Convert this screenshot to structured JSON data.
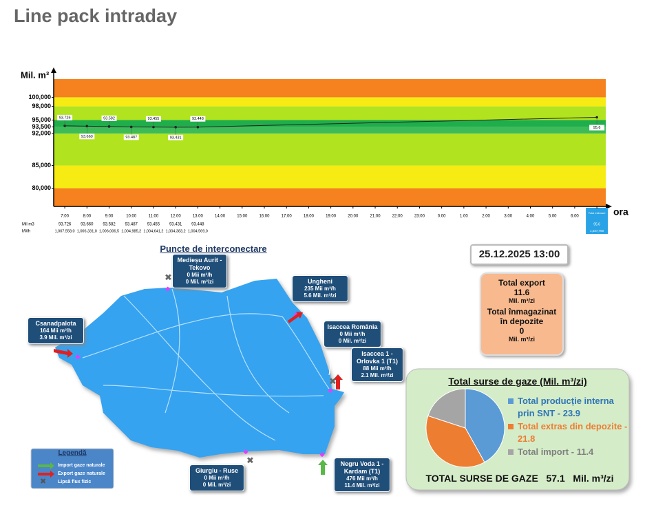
{
  "page_title": "Line pack intraday",
  "chart_data": [
    {
      "type": "line",
      "y_label": "Mil. m³",
      "x_label": "ora",
      "x": [
        0,
        1,
        2,
        3,
        4,
        5,
        6,
        24
      ],
      "xlim": [
        -0.5,
        24.4
      ],
      "xticks": [
        {
          "value": 0,
          "label": "7:00"
        },
        {
          "value": 1,
          "label": "8:00"
        },
        {
          "value": 2,
          "label": "9:00"
        },
        {
          "value": 3,
          "label": "10:00"
        },
        {
          "value": 4,
          "label": "11:00"
        },
        {
          "value": 5,
          "label": "12:00"
        },
        {
          "value": 6,
          "label": "13:00"
        },
        {
          "value": 7,
          "label": "14:00"
        },
        {
          "value": 8,
          "label": "15:00"
        },
        {
          "value": 9,
          "label": "16:00"
        },
        {
          "value": 10,
          "label": "17:00"
        },
        {
          "value": 11,
          "label": "18:00"
        },
        {
          "value": 12,
          "label": "19:00"
        },
        {
          "value": 13,
          "label": "20:00"
        },
        {
          "value": 14,
          "label": "21:00"
        },
        {
          "value": 15,
          "label": "22:00"
        },
        {
          "value": 16,
          "label": "23:00"
        },
        {
          "value": 17,
          "label": "0:00"
        },
        {
          "value": 18,
          "label": "1:00"
        },
        {
          "value": 19,
          "label": "2:00"
        },
        {
          "value": 20,
          "label": "3:00"
        },
        {
          "value": 21,
          "label": "4:00"
        },
        {
          "value": 22,
          "label": "5:00"
        },
        {
          "value": 23,
          "label": "6:00"
        },
        {
          "value": 24,
          "label": "Total estimare"
        }
      ],
      "ylim": [
        76,
        104
      ],
      "yticks": [
        {
          "value": 100,
          "label": "100,000"
        },
        {
          "value": 98,
          "label": "98,000"
        },
        {
          "value": 95,
          "label": "95,000"
        },
        {
          "value": 93.5,
          "label": "93,500"
        },
        {
          "value": 92,
          "label": "92,000"
        },
        {
          "value": 85,
          "label": "85,000"
        },
        {
          "value": 80,
          "label": "80,000"
        }
      ],
      "bands": [
        {
          "from": 100,
          "to": 104,
          "color": "#f5811f"
        },
        {
          "from": 98,
          "to": 100,
          "color": "#f6eb13"
        },
        {
          "from": 95,
          "to": 98,
          "color": "#b1e31f"
        },
        {
          "from": 93.5,
          "to": 95,
          "color": "#1fae4b"
        },
        {
          "from": 92,
          "to": 93.5,
          "color": "#3dbb58"
        },
        {
          "from": 85,
          "to": 92,
          "color": "#b1e31f"
        },
        {
          "from": 80,
          "to": 85,
          "color": "#f6eb13"
        },
        {
          "from": 76,
          "to": 80,
          "color": "#f5811f"
        }
      ],
      "values": [
        93.726,
        93.66,
        93.582,
        93.487,
        93.455,
        93.431,
        93.448,
        95.6
      ],
      "value_labels": [
        "93.726",
        "93.660",
        "93.582",
        "93.487",
        "93.455",
        "93.431",
        "93.448",
        "95.6"
      ],
      "color": "#222222",
      "row_labels": [
        "Mil m3",
        "kWh"
      ],
      "kwh": [
        "1,007,558,0",
        "1,006,331,0",
        "1,006,006,5",
        "1,004,985,2",
        "1,004,641,2",
        "1,004,383,2",
        "1,004,569,0",
        "1,027,760"
      ]
    },
    {
      "type": "pie",
      "title": "Total surse de gaze  (Mil. m³/zi)",
      "categories": [
        "Total producție interna prin SNT - 23.9",
        "Total extras din depozite - 21.8",
        "Total import - 11.4"
      ],
      "values": [
        23.9,
        21.8,
        11.4
      ],
      "colors": [
        "#5b9bd5",
        "#ed7d31",
        "#a5a5a5"
      ],
      "label_colors": [
        "#2e75b6",
        "#ed7d31",
        "#7f7f7f"
      ],
      "total_label": "TOTAL SURSE DE GAZE",
      "total": "57.1",
      "total_unit": "Mil. m³/zi"
    }
  ],
  "map": {
    "title": "Puncte de interconectare",
    "points": [
      {
        "name": "Medieșu Aurit - Tekovo",
        "flow_h": "0 Mii  m³/h",
        "flow_d": "0 Mil. m³/zi"
      },
      {
        "name": "Ungheni",
        "flow_h": "235 Mii  m³/h",
        "flow_d": "5.6 Mil. m³/zi"
      },
      {
        "name": "Csanadpalota",
        "flow_h": "164 Mii  m³/h",
        "flow_d": "3.9 Mil. m³/zi"
      },
      {
        "name": "Isaccea România",
        "flow_h": "0 Mii  m³/h",
        "flow_d": "0 Mil. m³/zi"
      },
      {
        "name": "Isaccea 1 - Orlovka 1 (T1)",
        "flow_h": "88 Mii  m³/h",
        "flow_d": "2.1 Mil. m³/zi"
      },
      {
        "name": "Giurgiu - Ruse",
        "flow_h": "0 Mii  m³/h",
        "flow_d": "0 Mil. m³/zi"
      },
      {
        "name": "Negru Voda 1 - Kardam (T1)",
        "flow_h": "476 Mii  m³/h",
        "flow_d": "11.4 Mil. m³/zi"
      }
    ],
    "legend": {
      "title": "Legendă",
      "items": [
        "Import gaze naturale",
        "Export gaze naturale",
        "Lipsă flux fizic"
      ]
    }
  },
  "datetime": "25.12.2025 13:00",
  "summary": {
    "export_label": "Total export",
    "export_value": "11.6",
    "export_unit": "Mil. m³/zi",
    "storage_label": "Total înmagazinat în depozite",
    "storage_value": "0",
    "storage_unit": "Mil. m³/zi"
  }
}
